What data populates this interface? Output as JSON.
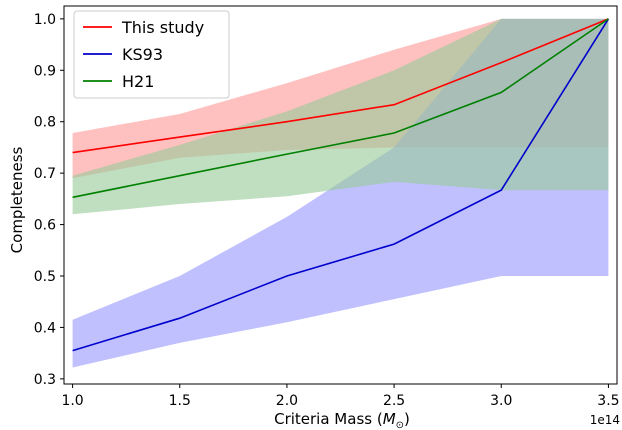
{
  "chart_data": {
    "type": "line",
    "xlabel": "Criteria Mass (M⊙)",
    "xlabel_main": "Criteria Mass (",
    "xlabel_symbol": "M",
    "xlabel_subscript": "⊙",
    "xlabel_close": ")",
    "ylabel": "Completeness",
    "x_offset_text": "1e14",
    "xlim": [
      0.96,
      3.54
    ],
    "ylim": [
      0.29,
      1.025
    ],
    "xticks": [
      1.0,
      1.5,
      2.0,
      2.5,
      3.0,
      3.5
    ],
    "xtick_labels": [
      "1.0",
      "1.5",
      "2.0",
      "2.5",
      "3.0",
      "3.5"
    ],
    "yticks": [
      0.3,
      0.4,
      0.5,
      0.6,
      0.7,
      0.8,
      0.9,
      1.0
    ],
    "ytick_labels": [
      "0.3",
      "0.4",
      "0.5",
      "0.6",
      "0.7",
      "0.8",
      "0.9",
      "1.0"
    ],
    "grid": false,
    "legend_position": "top-left",
    "x": [
      1.0,
      1.5,
      2.0,
      2.5,
      3.0,
      3.5
    ],
    "series": [
      {
        "name": "This study",
        "color": "#ff0000",
        "band_color": "#ff9999",
        "values": [
          0.74,
          0.77,
          0.8,
          0.833,
          0.915,
          1.0
        ],
        "lower": [
          0.69,
          0.73,
          0.745,
          0.75,
          0.75,
          0.75
        ],
        "upper": [
          0.778,
          0.815,
          0.875,
          0.94,
          1.0,
          1.0
        ]
      },
      {
        "name": "KS93",
        "color": "#0000cc",
        "band_color": "#9999ff",
        "values": [
          0.355,
          0.418,
          0.5,
          0.562,
          0.667,
          1.0
        ],
        "lower": [
          0.322,
          0.37,
          0.41,
          0.455,
          0.5,
          0.5
        ],
        "upper": [
          0.415,
          0.5,
          0.615,
          0.75,
          1.0,
          1.0
        ]
      },
      {
        "name": "H21",
        "color": "#008000",
        "band_color": "#99cc99",
        "values": [
          0.653,
          0.695,
          0.737,
          0.778,
          0.857,
          1.0
        ],
        "lower": [
          0.62,
          0.64,
          0.655,
          0.683,
          0.667,
          0.667
        ],
        "upper": [
          0.695,
          0.755,
          0.82,
          0.9,
          1.0,
          1.0
        ]
      }
    ]
  }
}
